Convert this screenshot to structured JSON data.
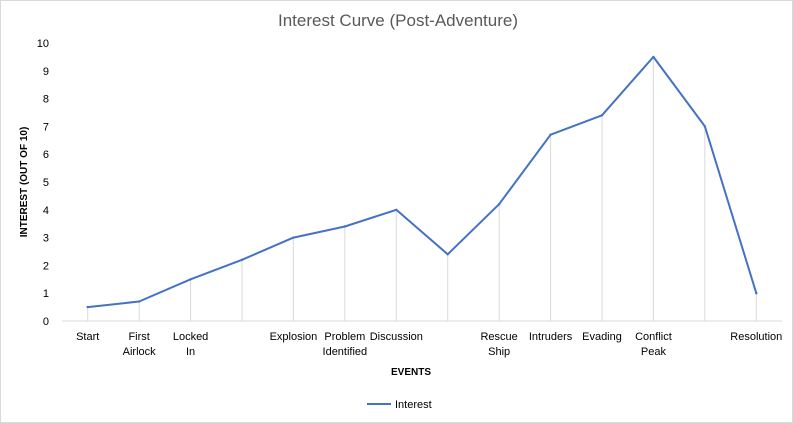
{
  "chart_data": {
    "type": "line",
    "title": "Interest Curve (Post-Adventure)",
    "xlabel": "EVENTS",
    "ylabel": "INTEREST (OUT OF 10)",
    "ylim": [
      0,
      10
    ],
    "yticks": [
      "0",
      "1",
      "2",
      "3",
      "4",
      "5",
      "6",
      "7",
      "8",
      "9",
      "10"
    ],
    "grid": "vertical drop lines at each event",
    "legend": "bottom",
    "categories": [
      [
        "Start"
      ],
      [
        "First",
        "Airlock"
      ],
      [
        "Locked",
        "In"
      ],
      [
        ""
      ],
      [
        "Explosion"
      ],
      [
        "Problem",
        "Identified"
      ],
      [
        "Discussion"
      ],
      [
        ""
      ],
      [
        "Rescue",
        "Ship"
      ],
      [
        "Intruders"
      ],
      [
        "Evading"
      ],
      [
        "Conflict",
        "Peak"
      ],
      [
        ""
      ],
      [
        "Resolution"
      ]
    ],
    "series": [
      {
        "name": "Interest",
        "color": "#4472c4",
        "values": [
          0.5,
          0.7,
          1.5,
          2.2,
          3.0,
          3.4,
          4.0,
          2.4,
          4.2,
          6.7,
          7.4,
          9.5,
          7.0,
          1.0
        ]
      }
    ]
  }
}
